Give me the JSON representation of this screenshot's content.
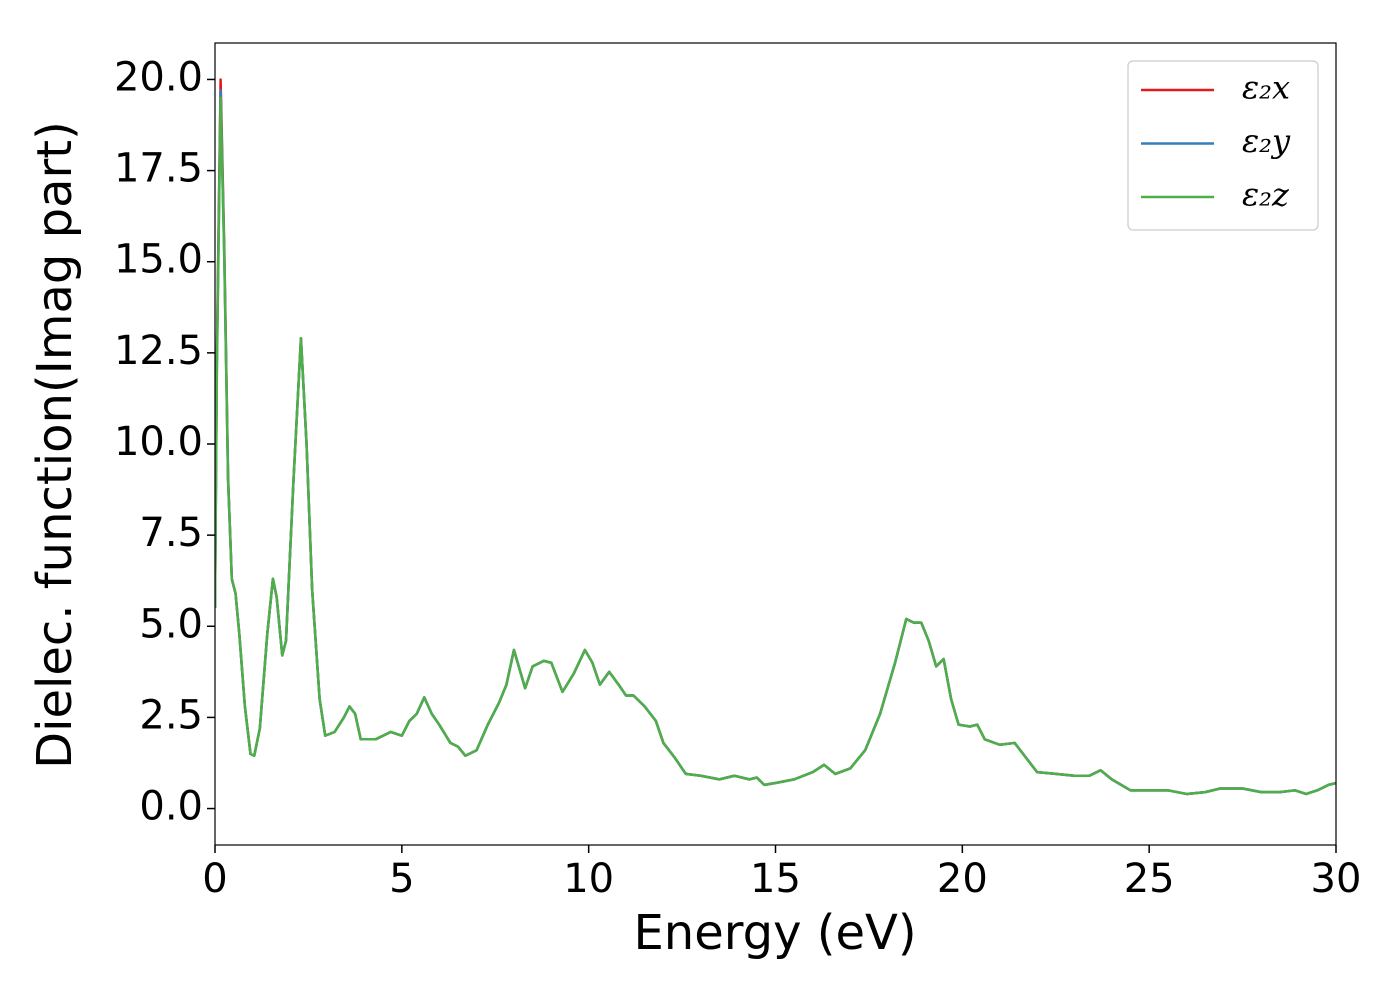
{
  "chart_data": {
    "type": "line",
    "xlabel": "Energy (eV)",
    "ylabel": "Dielec. function(Imag part)",
    "xlim": [
      0,
      30
    ],
    "ylim": [
      -1,
      21
    ],
    "xticks": [
      0,
      5,
      10,
      15,
      20,
      25,
      30
    ],
    "yticks": [
      {
        "value": 0,
        "label": "0.0"
      },
      2.5,
      {
        "value": 5,
        "label": "5.0"
      },
      7.5,
      {
        "value": 10,
        "label": "10.0"
      },
      12.5,
      {
        "value": 15,
        "label": "15.0"
      },
      17.5,
      {
        "value": 20,
        "label": "20.0"
      }
    ],
    "legend": "upper right",
    "x": [
      0.0,
      0.05,
      0.15,
      0.25,
      0.35,
      0.45,
      0.55,
      0.65,
      0.8,
      0.95,
      1.05,
      1.2,
      1.4,
      1.55,
      1.65,
      1.8,
      1.9,
      2.1,
      2.3,
      2.45,
      2.6,
      2.8,
      2.95,
      3.2,
      3.45,
      3.6,
      3.75,
      3.9,
      4.3,
      4.7,
      5.0,
      5.2,
      5.4,
      5.6,
      5.8,
      6.0,
      6.3,
      6.5,
      6.7,
      7.0,
      7.3,
      7.6,
      7.8,
      8.0,
      8.1,
      8.3,
      8.5,
      8.8,
      9.0,
      9.3,
      9.6,
      9.9,
      10.1,
      10.3,
      10.55,
      10.8,
      11.0,
      11.2,
      11.5,
      11.8,
      12.0,
      12.3,
      12.6,
      13.0,
      13.5,
      13.9,
      14.3,
      14.5,
      14.7,
      15.0,
      15.5,
      16.0,
      16.3,
      16.6,
      17.0,
      17.4,
      17.8,
      18.2,
      18.5,
      18.7,
      18.9,
      19.1,
      19.3,
      19.5,
      19.7,
      19.9,
      20.2,
      20.4,
      20.6,
      21.0,
      21.4,
      21.7,
      22.0,
      22.5,
      23.0,
      23.4,
      23.7,
      24.0,
      24.5,
      25.0,
      25.5,
      26.0,
      26.5,
      26.9,
      27.5,
      28.0,
      28.5,
      28.9,
      29.2,
      29.5,
      29.8,
      30.0
    ],
    "series": [
      {
        "name": "ε₂x",
        "color": "#e41a1c",
        "values": [
          5.5,
          12.5,
          20.0,
          15.3,
          9.1,
          6.3,
          5.9,
          4.8,
          2.8,
          1.5,
          1.45,
          2.2,
          4.8,
          6.3,
          5.8,
          4.2,
          4.6,
          9.0,
          12.9,
          10,
          6,
          3,
          2.0,
          2.1,
          2.5,
          2.8,
          2.6,
          1.9,
          1.9,
          2.1,
          2.0,
          2.4,
          2.6,
          3.05,
          2.6,
          2.3,
          1.8,
          1.7,
          1.45,
          1.6,
          2.3,
          2.9,
          3.4,
          4.35,
          4.0,
          3.3,
          3.9,
          4.05,
          4.0,
          3.2,
          3.7,
          4.35,
          4.0,
          3.4,
          3.75,
          3.4,
          3.1,
          3.1,
          2.8,
          2.4,
          1.8,
          1.4,
          0.95,
          0.9,
          0.8,
          0.9,
          0.8,
          0.85,
          0.65,
          0.7,
          0.8,
          1.0,
          1.2,
          0.95,
          1.1,
          1.6,
          2.6,
          4.0,
          5.2,
          5.1,
          5.1,
          4.6,
          3.9,
          4.1,
          3.0,
          2.3,
          2.25,
          2.3,
          1.9,
          1.75,
          1.8,
          1.4,
          1.0,
          0.95,
          0.9,
          0.9,
          1.05,
          0.8,
          0.5,
          0.5,
          0.5,
          0.4,
          0.45,
          0.55,
          0.55,
          0.45,
          0.45,
          0.5,
          0.4,
          0.5,
          0.65,
          0.7
        ]
      },
      {
        "name": "ε₂y",
        "color": "#377eb8",
        "values": [
          5.5,
          12.2,
          19.7,
          15.1,
          9.0,
          6.3,
          5.9,
          4.8,
          2.8,
          1.5,
          1.45,
          2.2,
          4.8,
          6.3,
          5.8,
          4.2,
          4.6,
          9.0,
          12.9,
          10,
          6,
          3,
          2.0,
          2.1,
          2.5,
          2.8,
          2.6,
          1.9,
          1.9,
          2.1,
          2.0,
          2.4,
          2.6,
          3.05,
          2.6,
          2.3,
          1.8,
          1.7,
          1.45,
          1.6,
          2.3,
          2.9,
          3.4,
          4.35,
          4.0,
          3.3,
          3.9,
          4.05,
          4.0,
          3.2,
          3.7,
          4.35,
          4.0,
          3.4,
          3.75,
          3.4,
          3.1,
          3.1,
          2.8,
          2.4,
          1.8,
          1.4,
          0.95,
          0.9,
          0.8,
          0.9,
          0.8,
          0.85,
          0.65,
          0.7,
          0.8,
          1.0,
          1.2,
          0.95,
          1.1,
          1.6,
          2.6,
          4.0,
          5.2,
          5.1,
          5.1,
          4.6,
          3.9,
          4.1,
          3.0,
          2.3,
          2.25,
          2.3,
          1.9,
          1.75,
          1.8,
          1.4,
          1.0,
          0.95,
          0.9,
          0.9,
          1.05,
          0.8,
          0.5,
          0.5,
          0.5,
          0.4,
          0.45,
          0.55,
          0.55,
          0.45,
          0.45,
          0.5,
          0.4,
          0.5,
          0.65,
          0.7
        ]
      },
      {
        "name": "ε₂z",
        "color": "#4daf4a",
        "values": [
          5.5,
          12.0,
          19.5,
          15.0,
          9.0,
          6.3,
          5.9,
          4.8,
          2.8,
          1.5,
          1.45,
          2.2,
          4.8,
          6.3,
          5.8,
          4.2,
          4.6,
          9.0,
          12.9,
          10,
          6,
          3,
          2.0,
          2.1,
          2.5,
          2.8,
          2.6,
          1.9,
          1.9,
          2.1,
          2.0,
          2.4,
          2.6,
          3.05,
          2.6,
          2.3,
          1.8,
          1.7,
          1.45,
          1.6,
          2.3,
          2.9,
          3.4,
          4.35,
          4.0,
          3.3,
          3.9,
          4.05,
          4.0,
          3.2,
          3.7,
          4.35,
          4.0,
          3.4,
          3.75,
          3.4,
          3.1,
          3.1,
          2.8,
          2.4,
          1.8,
          1.4,
          0.95,
          0.9,
          0.8,
          0.9,
          0.8,
          0.85,
          0.65,
          0.7,
          0.8,
          1.0,
          1.2,
          0.95,
          1.1,
          1.6,
          2.6,
          4.0,
          5.2,
          5.1,
          5.1,
          4.6,
          3.9,
          4.1,
          3.0,
          2.3,
          2.25,
          2.3,
          1.9,
          1.75,
          1.8,
          1.4,
          1.0,
          0.95,
          0.9,
          0.9,
          1.05,
          0.8,
          0.5,
          0.5,
          0.5,
          0.4,
          0.45,
          0.55,
          0.55,
          0.45,
          0.45,
          0.5,
          0.4,
          0.5,
          0.65,
          0.7
        ]
      }
    ]
  }
}
